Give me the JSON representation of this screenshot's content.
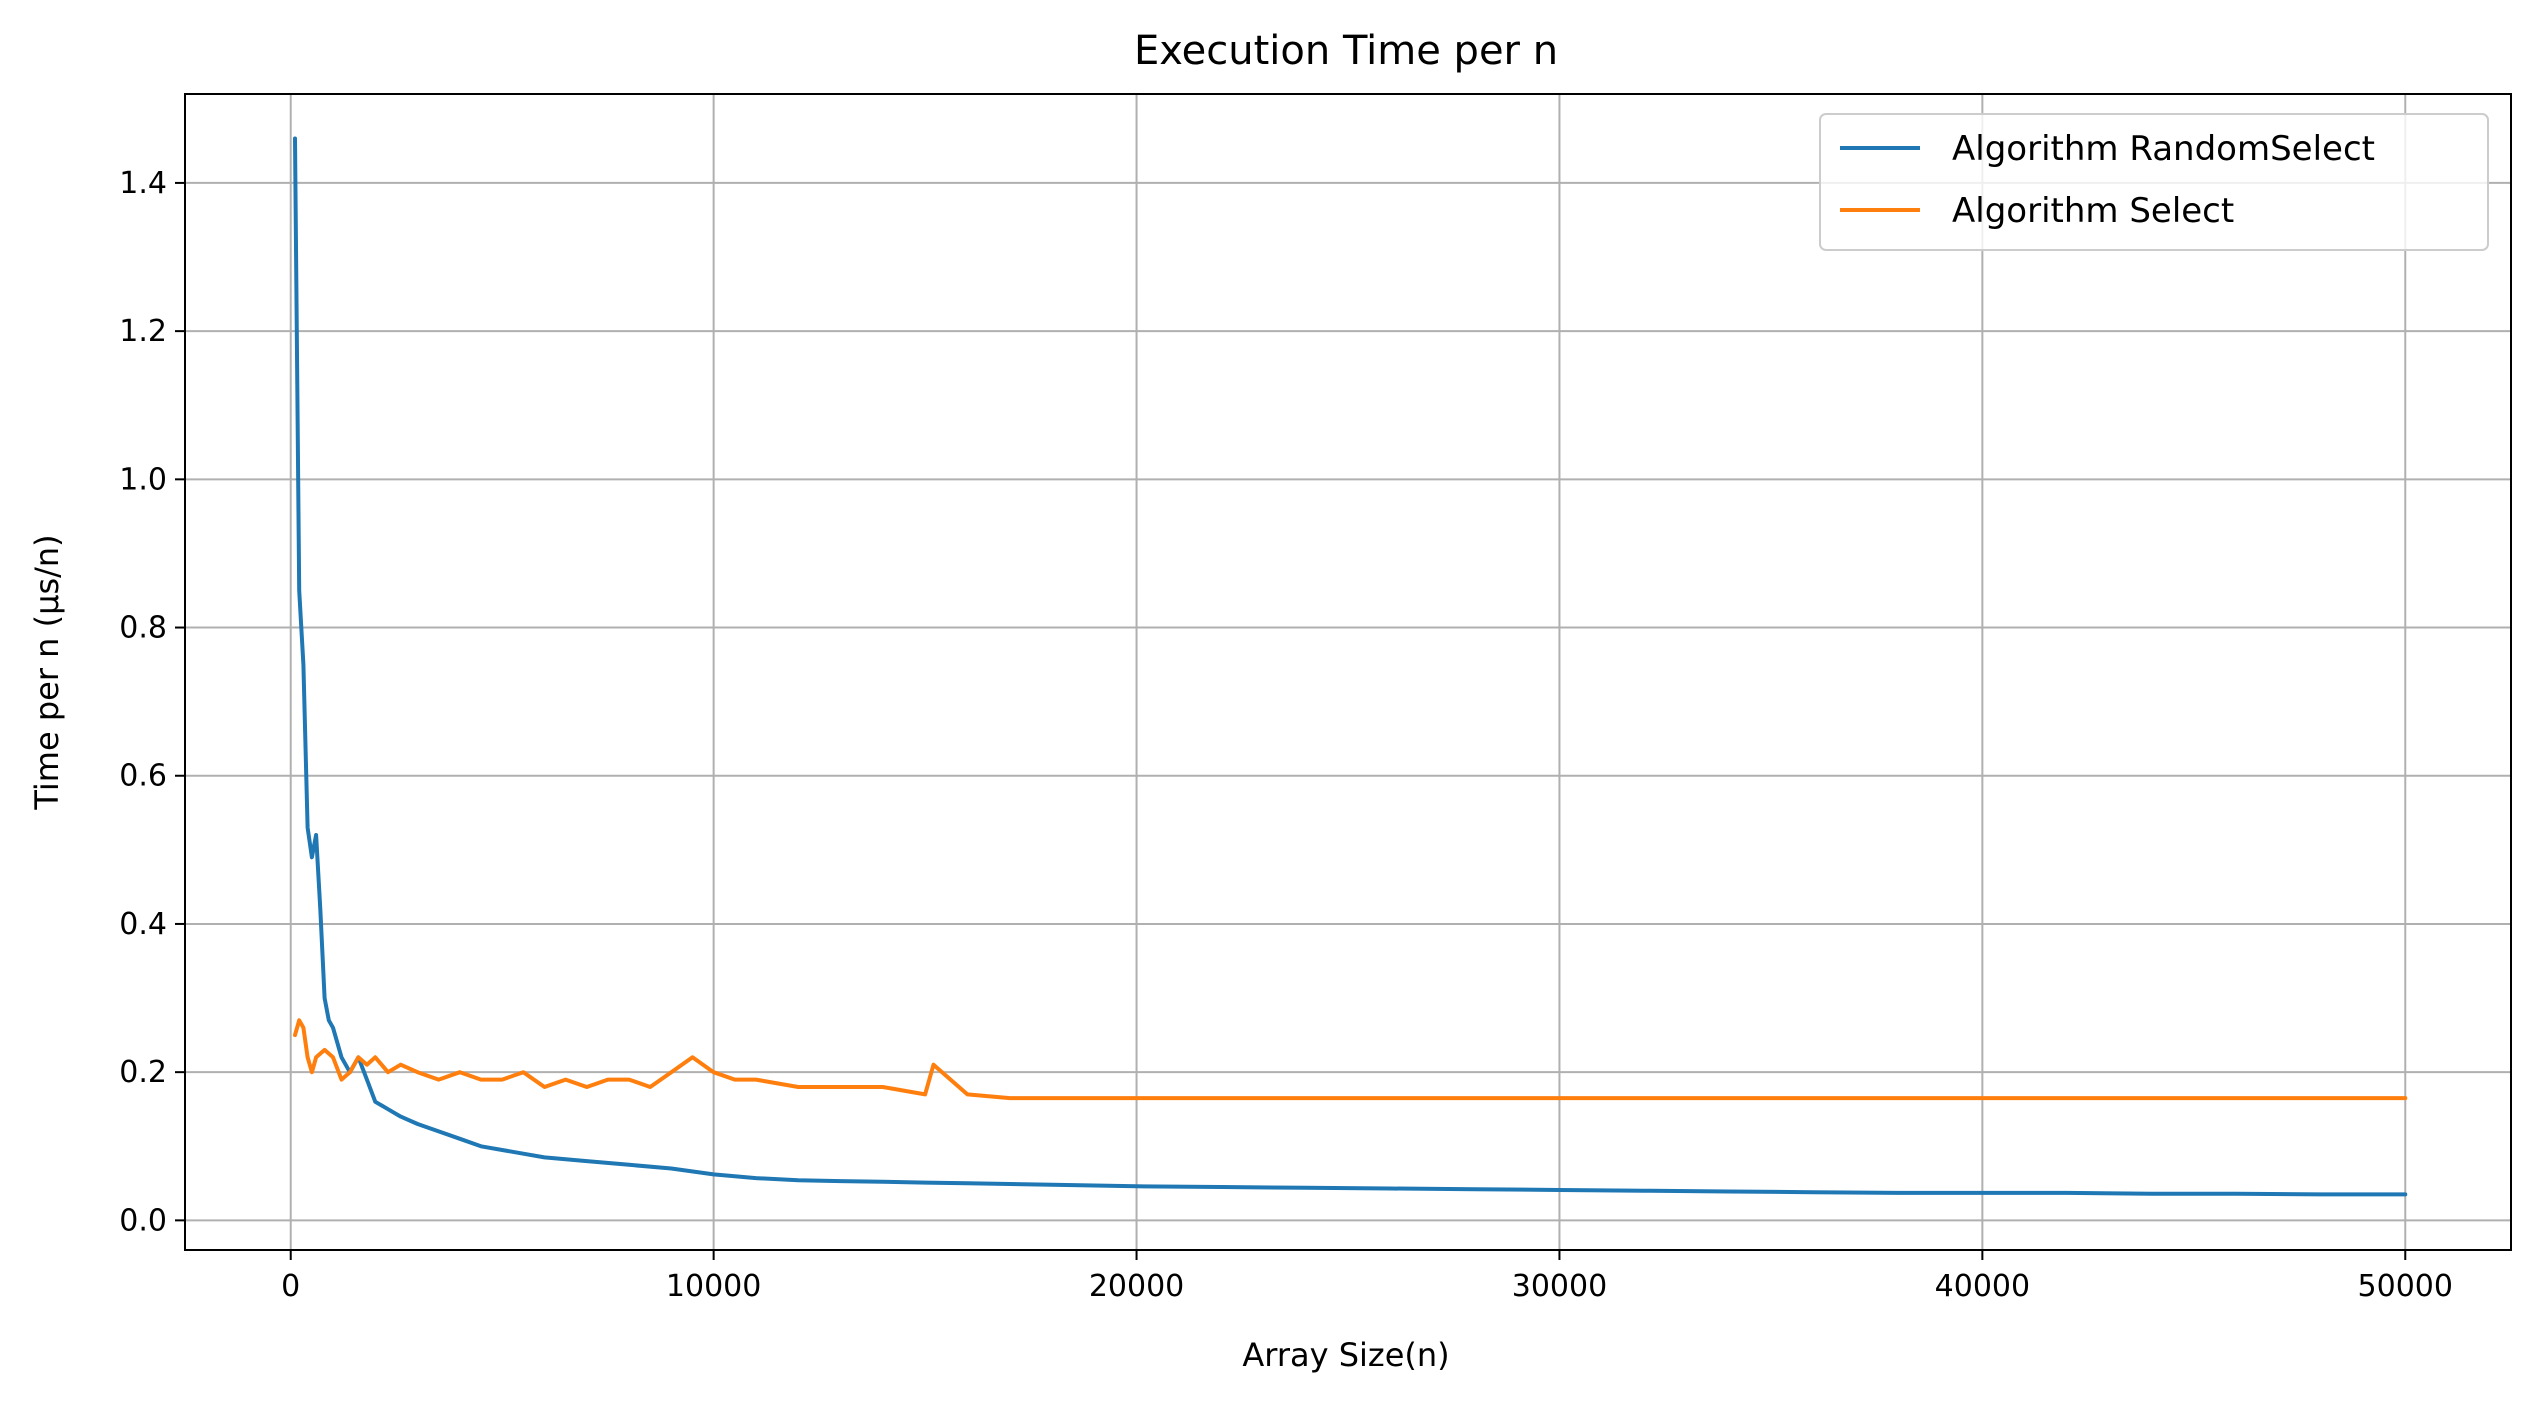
{
  "chart_data": {
    "type": "line",
    "title": "Execution Time per n",
    "xlabel": "Array Size(n)",
    "ylabel": "Time per n (μs/n)",
    "xlim": [
      -2500,
      52500
    ],
    "ylim": [
      -0.04,
      1.52
    ],
    "xticks": [
      0,
      10000,
      20000,
      30000,
      40000,
      50000
    ],
    "yticks": [
      0.0,
      0.2,
      0.4,
      0.6,
      0.8,
      1.0,
      1.2,
      1.4
    ],
    "xtick_labels": [
      "0",
      "10000",
      "20000",
      "30000",
      "40000",
      "50000"
    ],
    "ytick_labels": [
      "0.0",
      "0.2",
      "0.4",
      "0.6",
      "0.8",
      "1.0",
      "1.2",
      "1.4"
    ],
    "grid": true,
    "legend_position": "top-right",
    "series": [
      {
        "name": "Algorithm RandomSelect",
        "color": "#1f77b4",
        "x": [
          100,
          200,
          300,
          400,
          500,
          600,
          700,
          800,
          900,
          1000,
          1200,
          1400,
          1600,
          1800,
          2000,
          2300,
          2600,
          3000,
          3500,
          4000,
          4500,
          5000,
          5500,
          6000,
          7000,
          8000,
          9000,
          10000,
          11000,
          12000,
          13000,
          14000,
          15000,
          16000,
          17000,
          18000,
          19000,
          20000,
          22000,
          24000,
          26000,
          28000,
          30000,
          32000,
          34000,
          36000,
          38000,
          40000,
          42000,
          44000,
          46000,
          48000,
          50000
        ],
        "y": [
          1.46,
          0.85,
          0.75,
          0.53,
          0.49,
          0.52,
          0.42,
          0.3,
          0.27,
          0.26,
          0.22,
          0.2,
          0.22,
          0.19,
          0.16,
          0.15,
          0.14,
          0.13,
          0.12,
          0.11,
          0.1,
          0.095,
          0.09,
          0.085,
          0.08,
          0.075,
          0.07,
          0.062,
          0.057,
          0.054,
          0.053,
          0.052,
          0.051,
          0.05,
          0.049,
          0.048,
          0.047,
          0.046,
          0.045,
          0.044,
          0.043,
          0.042,
          0.041,
          0.04,
          0.039,
          0.038,
          0.037,
          0.037,
          0.037,
          0.036,
          0.036,
          0.035,
          0.035
        ]
      },
      {
        "name": "Algorithm Select",
        "color": "#ff7f0e",
        "x": [
          100,
          200,
          300,
          400,
          500,
          600,
          800,
          1000,
          1200,
          1400,
          1600,
          1800,
          2000,
          2300,
          2600,
          3000,
          3500,
          4000,
          4500,
          5000,
          5500,
          6000,
          6500,
          7000,
          7500,
          8000,
          8500,
          9000,
          9500,
          10000,
          10500,
          11000,
          12000,
          13000,
          14000,
          15000,
          15200,
          16000,
          17000,
          18000,
          19000,
          20000,
          22000,
          24000,
          26000,
          28000,
          30000,
          32000,
          34000,
          36000,
          38000,
          40000,
          42000,
          44000,
          46000,
          48000,
          50000
        ],
        "y": [
          0.25,
          0.27,
          0.26,
          0.22,
          0.2,
          0.22,
          0.23,
          0.22,
          0.19,
          0.2,
          0.22,
          0.21,
          0.22,
          0.2,
          0.21,
          0.2,
          0.19,
          0.2,
          0.19,
          0.19,
          0.2,
          0.18,
          0.19,
          0.18,
          0.19,
          0.19,
          0.18,
          0.2,
          0.22,
          0.2,
          0.19,
          0.19,
          0.18,
          0.18,
          0.18,
          0.17,
          0.21,
          0.17,
          0.165,
          0.165,
          0.165,
          0.165,
          0.165,
          0.165,
          0.165,
          0.165,
          0.165,
          0.165,
          0.165,
          0.165,
          0.165,
          0.165,
          0.165,
          0.165,
          0.165,
          0.165,
          0.165
        ]
      }
    ]
  }
}
